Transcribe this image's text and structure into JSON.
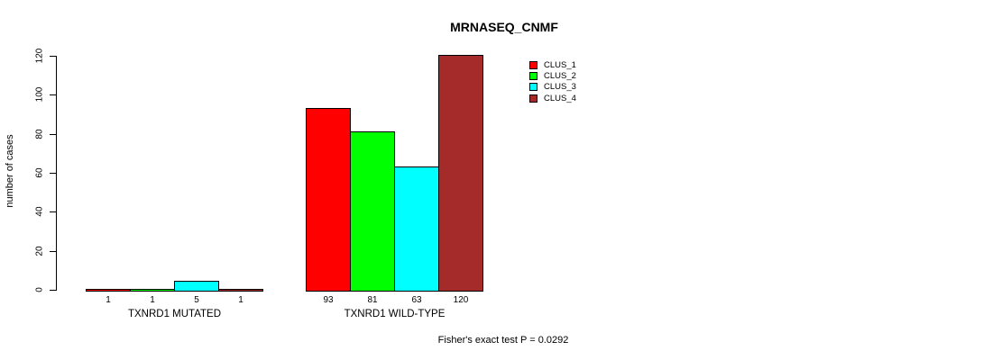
{
  "chart_data": {
    "type": "bar",
    "title": "MRNASEQ_CNMF",
    "xlabel": "",
    "ylabel": "number of cases",
    "ylim": [
      0,
      120
    ],
    "yticks": [
      0,
      20,
      40,
      60,
      80,
      100,
      120
    ],
    "grid": false,
    "legend_position": "top-right",
    "series": [
      {
        "name": "CLUS_1",
        "color": "#ff0000"
      },
      {
        "name": "CLUS_2",
        "color": "#00ff00"
      },
      {
        "name": "CLUS_3",
        "color": "#00ffff"
      },
      {
        "name": "CLUS_4",
        "color": "#a52a2a"
      }
    ],
    "groups": [
      {
        "label": "TXNRD1 MUTATED",
        "values": [
          1,
          1,
          5,
          1
        ]
      },
      {
        "label": "TXNRD1 WILD-TYPE",
        "values": [
          93,
          81,
          63,
          120
        ]
      }
    ],
    "bar_value_labels_shown": true,
    "annotation": "Fisher's exact test P = 0.0292"
  },
  "colors": {
    "background": "#ffffff",
    "axis": "#000000",
    "text": "#000000"
  }
}
